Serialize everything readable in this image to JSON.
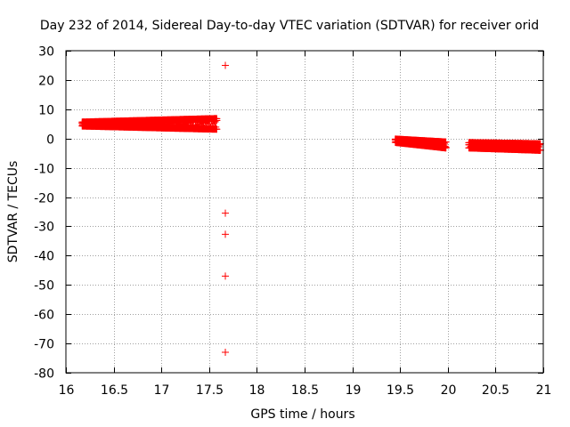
{
  "chart_data": {
    "type": "scatter",
    "title": "Day 232 of 2014, Sidereal Day-to-day VTEC variation (SDTVAR) for receiver orid",
    "xlabel": "GPS time / hours",
    "ylabel": "SDTVAR / TECUs",
    "xlim": [
      16,
      21
    ],
    "ylim": [
      -80,
      30
    ],
    "xticks": [
      16,
      16.5,
      17,
      17.5,
      18,
      18.5,
      19,
      19.5,
      20,
      20.5,
      21
    ],
    "yticks": [
      -80,
      -70,
      -60,
      -50,
      -40,
      -30,
      -20,
      -10,
      0,
      10,
      20,
      30
    ],
    "grid": true,
    "marker": "+",
    "color": "#ff0000",
    "series": [
      {
        "name": "SDTVAR",
        "clusters": [
          {
            "x_start": 16.17,
            "x_end": 17.58,
            "y_low_start": 4.3,
            "y_low_end": 3.2,
            "y_high_start": 5.6,
            "y_high_end": 6.8,
            "count": 260
          },
          {
            "x_start": 19.45,
            "x_end": 19.98,
            "y_low_start": -1.3,
            "y_low_end": -3.2,
            "y_high_start": -0.2,
            "y_high_end": -1.2,
            "count": 100
          },
          {
            "x_start": 20.22,
            "x_end": 20.97,
            "y_low_start": -3.2,
            "y_low_end": -4.0,
            "y_high_start": -1.4,
            "y_high_end": -1.8,
            "count": 140
          }
        ],
        "outliers": [
          {
            "x": 17.67,
            "y": 25
          },
          {
            "x": 17.67,
            "y": -25.5
          },
          {
            "x": 17.67,
            "y": -32.7
          },
          {
            "x": 17.67,
            "y": -47
          },
          {
            "x": 17.67,
            "y": -73
          }
        ]
      }
    ]
  }
}
